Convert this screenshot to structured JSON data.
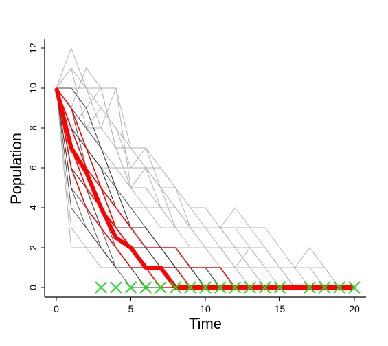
{
  "chart_data": {
    "type": "line",
    "title": "",
    "xlabel": "Time",
    "ylabel": "Population",
    "xlim": [
      0,
      20
    ],
    "ylim": [
      0,
      12
    ],
    "x_ticks": [
      "0",
      "5",
      "10",
      "15",
      "20"
    ],
    "y_ticks": [
      "0",
      "2",
      "4",
      "6",
      "8",
      "10",
      "12"
    ],
    "grid": false,
    "legend": "none",
    "colors": {
      "gray_paths": "#b3b3b3",
      "dark_paths": "#333333",
      "red_paths": "#ff0000",
      "mean_path": "#ff0000",
      "extinction_markers": "#22dd22"
    },
    "gray_paths": [
      [
        10,
        12,
        10,
        10,
        7,
        5,
        6,
        4,
        3,
        3,
        3,
        2,
        1,
        2,
        2,
        1,
        1,
        1,
        0,
        0,
        0
      ],
      [
        10,
        11,
        10,
        8,
        10,
        7,
        7,
        5,
        4,
        3,
        3,
        3,
        4,
        3,
        2,
        1,
        1,
        0,
        0,
        0,
        0
      ],
      [
        10,
        9,
        11,
        10,
        7,
        7,
        6,
        6,
        5,
        4,
        4,
        3,
        3,
        2,
        2,
        1,
        1,
        1,
        1,
        0,
        0
      ],
      [
        10,
        10,
        9,
        10,
        10,
        5,
        6,
        5,
        4,
        3,
        3,
        3,
        2,
        1,
        1,
        1,
        1,
        1,
        0,
        0,
        0
      ],
      [
        10,
        8,
        9,
        7,
        6,
        6,
        7,
        6,
        5,
        4,
        3,
        3,
        2,
        2,
        1,
        1,
        0,
        0,
        0,
        0,
        0
      ],
      [
        10,
        11,
        8,
        9,
        8,
        7,
        6,
        5,
        5,
        3,
        3,
        3,
        3,
        3,
        3,
        2,
        1,
        2,
        1,
        0,
        0
      ],
      [
        10,
        9,
        8,
        7,
        6,
        5,
        5,
        4,
        4,
        3,
        2,
        2,
        1,
        1,
        0,
        0,
        0,
        0,
        0,
        0,
        0
      ],
      [
        10,
        10,
        10,
        9,
        8,
        6,
        6,
        5,
        3,
        3,
        3,
        3,
        2,
        2,
        1,
        1,
        0,
        0,
        0,
        0,
        0
      ],
      [
        10,
        8,
        7,
        6,
        6,
        5,
        4,
        4,
        3,
        3,
        2,
        2,
        2,
        1,
        1,
        0,
        0,
        0,
        0,
        0,
        0
      ],
      [
        10,
        7,
        6,
        5,
        5,
        4,
        4,
        3,
        3,
        2,
        2,
        2,
        1,
        1,
        0,
        0,
        0,
        0,
        0,
        0,
        0
      ],
      [
        10,
        9,
        8,
        8,
        7,
        5,
        5,
        4,
        4,
        3,
        3,
        3,
        2,
        1,
        1,
        1,
        0,
        0,
        0,
        0,
        0
      ],
      [
        10,
        2,
        2,
        1,
        1,
        1,
        1,
        1,
        1,
        1,
        1,
        1,
        1,
        1,
        1,
        1,
        0,
        0,
        0,
        0,
        0
      ],
      [
        10,
        3,
        2,
        2,
        1,
        1,
        1,
        1,
        1,
        0,
        0,
        0,
        0,
        0,
        0,
        0,
        0,
        0,
        0,
        0,
        0
      ],
      [
        10,
        6,
        5,
        4,
        3,
        3,
        3,
        2,
        2,
        2,
        2,
        1,
        1,
        0,
        0,
        0,
        0,
        0,
        0,
        0,
        0
      ]
    ],
    "dark_paths": [
      [
        10,
        10,
        9,
        7,
        5,
        3,
        3,
        2,
        2,
        1,
        1,
        0,
        0,
        0,
        0,
        0,
        0,
        0,
        0,
        0,
        0
      ],
      [
        10,
        9,
        7,
        6,
        4,
        3,
        3,
        2,
        2,
        1,
        0,
        0,
        0,
        0,
        0,
        0,
        0,
        0,
        0,
        0,
        0
      ],
      [
        10,
        8,
        7,
        6,
        5,
        4,
        3,
        2,
        1,
        1,
        0,
        0,
        0,
        0,
        0,
        0,
        0,
        0,
        0,
        0,
        0
      ],
      [
        10,
        7,
        6,
        4,
        3,
        2,
        2,
        1,
        1,
        0,
        0,
        0,
        0,
        0,
        0,
        0,
        0,
        0,
        0,
        0,
        0
      ],
      [
        10,
        6,
        5,
        4,
        3,
        2,
        2,
        1,
        0,
        0,
        0,
        0,
        0,
        0,
        0,
        0,
        0,
        0,
        0,
        0,
        0
      ],
      [
        10,
        8,
        6,
        5,
        3,
        2,
        1,
        1,
        0,
        0,
        0,
        0,
        0,
        0,
        0,
        0,
        0,
        0,
        0,
        0,
        0
      ],
      [
        10,
        9,
        8,
        7,
        5,
        3,
        3,
        2,
        2,
        1,
        1,
        0,
        0,
        0,
        0,
        0,
        0,
        0,
        0,
        0,
        0
      ],
      [
        10,
        7,
        5,
        4,
        2,
        1,
        1,
        0,
        0,
        0,
        0,
        0,
        0,
        0,
        0,
        0,
        0,
        0,
        0,
        0,
        0
      ],
      [
        10,
        4,
        3,
        2,
        1,
        1,
        0,
        0,
        0,
        0,
        0,
        0,
        0,
        0,
        0,
        0,
        0,
        0,
        0,
        0,
        0
      ],
      [
        10,
        5,
        4,
        3,
        2,
        1,
        0,
        0,
        0,
        0,
        0,
        0,
        0,
        0,
        0,
        0,
        0,
        0,
        0,
        0,
        0
      ],
      [
        10,
        6,
        4,
        3,
        2,
        1,
        1,
        0,
        0,
        0,
        0,
        0,
        0,
        0,
        0,
        0,
        0,
        0,
        0,
        0,
        0
      ],
      [
        10,
        7,
        6,
        5,
        3,
        2,
        2,
        2,
        1,
        1,
        0,
        0,
        0,
        0,
        0,
        0,
        0,
        0,
        0,
        0,
        0
      ],
      [
        10,
        8,
        7,
        5,
        4,
        3,
        2,
        1,
        1,
        0,
        0,
        0,
        0,
        0,
        0,
        0,
        0,
        0,
        0,
        0,
        0
      ],
      [
        10,
        9,
        6,
        5,
        4,
        3,
        3,
        2,
        1,
        1,
        1,
        1,
        0,
        0,
        0,
        0,
        0,
        0,
        0,
        0,
        0
      ],
      [
        10,
        5,
        3,
        2,
        1,
        0,
        0,
        0,
        0,
        0,
        0,
        0,
        0,
        0,
        0,
        0,
        0,
        0,
        0,
        0,
        0
      ],
      [
        10,
        6,
        5,
        3,
        2,
        1,
        1,
        1,
        0,
        0,
        0,
        0,
        0,
        0,
        0,
        0,
        0,
        0,
        0,
        0,
        0
      ],
      [
        10,
        8,
        6,
        4,
        3,
        3,
        2,
        2,
        1,
        1,
        0,
        0,
        0,
        0,
        0,
        0,
        0,
        0,
        0,
        0,
        0
      ],
      [
        10,
        7,
        5,
        3,
        1,
        1,
        1,
        0,
        0,
        0,
        0,
        0,
        0,
        0,
        0,
        0,
        0,
        0,
        0,
        0,
        0
      ],
      [
        10,
        9,
        7,
        6,
        4,
        3,
        2,
        1,
        1,
        1,
        0,
        0,
        0,
        0,
        0,
        0,
        0,
        0,
        0,
        0,
        0
      ],
      [
        10,
        6,
        4,
        2,
        1,
        1,
        0,
        0,
        0,
        0,
        0,
        0,
        0,
        0,
        0,
        0,
        0,
        0,
        0,
        0,
        0
      ]
    ],
    "red_paths": [
      [
        10,
        9,
        7,
        5,
        4,
        3,
        2,
        2,
        2,
        1,
        1,
        1,
        0,
        0,
        0,
        0,
        0,
        0,
        0,
        0,
        0
      ],
      [
        10,
        8,
        6,
        5,
        3,
        2,
        1,
        1,
        1,
        0,
        0,
        0,
        0,
        0,
        0,
        0,
        0,
        0,
        0,
        0,
        0
      ],
      [
        10,
        6,
        4,
        3,
        2,
        1,
        1,
        0,
        0,
        0,
        0,
        0,
        0,
        0,
        0,
        0,
        0,
        0,
        0,
        0,
        0
      ],
      [
        10,
        7,
        5,
        4,
        3,
        2,
        1,
        1,
        0,
        0,
        0,
        0,
        0,
        0,
        0,
        0,
        0,
        0,
        0,
        0,
        0
      ]
    ],
    "mean_path": {
      "x": [
        0,
        1,
        2,
        3,
        4,
        5,
        6,
        7,
        8,
        9,
        10,
        11,
        12,
        13,
        14,
        15,
        16,
        17,
        18,
        19,
        20
      ],
      "y": [
        10,
        7,
        5.8,
        4,
        2.5,
        2,
        1,
        1,
        0,
        0,
        0,
        0,
        0,
        0,
        0,
        0,
        0,
        0,
        0,
        0,
        0
      ]
    },
    "extinction_times": [
      3,
      4,
      5,
      6,
      7,
      8,
      9,
      10,
      11,
      12,
      13,
      14,
      15,
      17,
      18,
      19,
      20
    ]
  }
}
